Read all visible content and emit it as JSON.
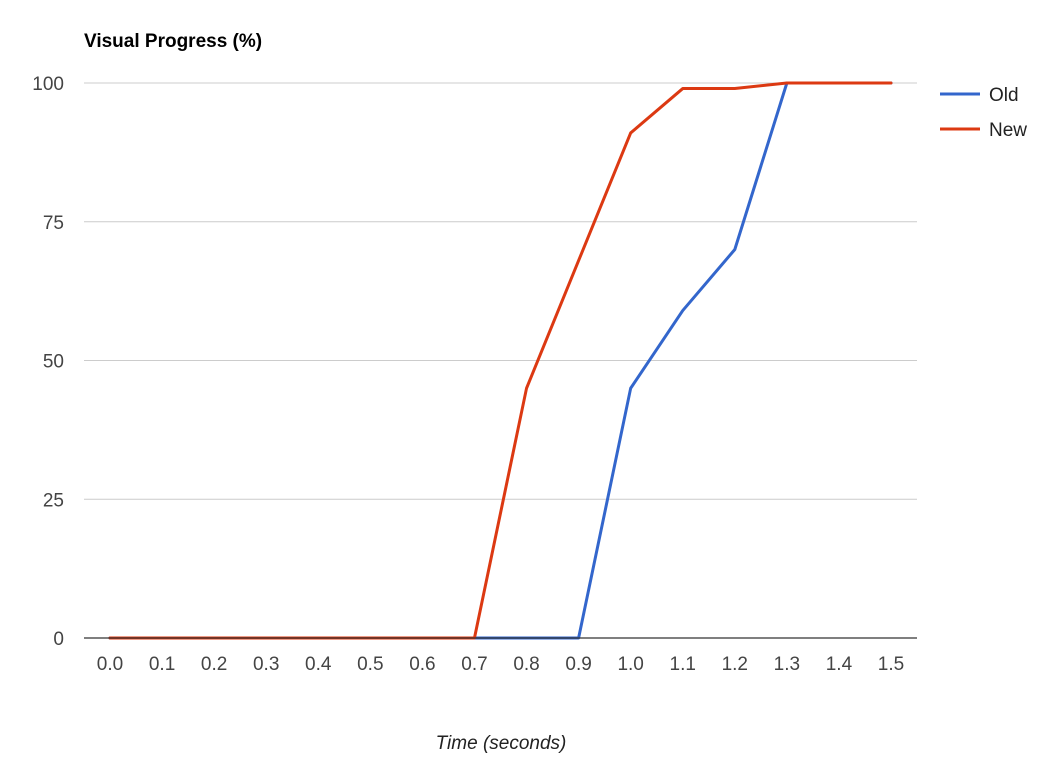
{
  "chart_data": {
    "type": "line",
    "title": "Visual Progress (%)",
    "xlabel": "Time (seconds)",
    "ylabel": "",
    "x": [
      0.0,
      0.1,
      0.2,
      0.3,
      0.4,
      0.5,
      0.6,
      0.7,
      0.8,
      0.9,
      1.0,
      1.1,
      1.2,
      1.3,
      1.4,
      1.5
    ],
    "x_tick_labels": [
      "0.0",
      "0.1",
      "0.2",
      "0.3",
      "0.4",
      "0.5",
      "0.6",
      "0.7",
      "0.8",
      "0.9",
      "1.0",
      "1.1",
      "1.2",
      "1.3",
      "1.4",
      "1.5"
    ],
    "y_ticks": [
      0,
      25,
      50,
      75,
      100
    ],
    "y_tick_labels": [
      "0",
      "25",
      "50",
      "75",
      "100"
    ],
    "ylim": [
      0,
      100
    ],
    "grid": true,
    "legend_position": "right",
    "series": [
      {
        "name": "Old",
        "color": "#3366cc",
        "values": [
          0,
          0,
          0,
          0,
          0,
          0,
          0,
          0,
          0,
          0,
          45,
          59,
          70,
          100,
          100,
          100
        ]
      },
      {
        "name": "New",
        "color": "#dc3912",
        "values": [
          0,
          0,
          0,
          0,
          0,
          0,
          0,
          0,
          45,
          68,
          91,
          99,
          99,
          100,
          100,
          100
        ]
      }
    ]
  }
}
